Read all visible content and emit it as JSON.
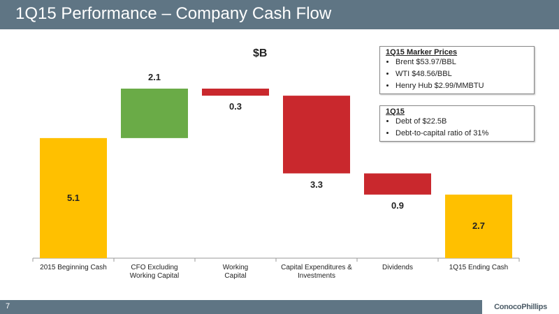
{
  "header": {
    "title": "1Q15 Performance – Company Cash Flow"
  },
  "chart_data": {
    "type": "waterfall",
    "unit_label": "$B",
    "categories": [
      "2015 Beginning Cash",
      "CFO Excluding\nWorking Capital",
      "Working\nCapital",
      "Capital Expenditures &\nInvestments",
      "Dividends",
      "1Q15 Ending Cash"
    ],
    "values": [
      5.1,
      2.1,
      0.3,
      3.3,
      0.9,
      2.7
    ],
    "measure": [
      "total",
      "increase",
      "decrease",
      "decrease",
      "decrease",
      "total"
    ],
    "colors": [
      "#ffc000",
      "#6aab47",
      "#c9282d",
      "#c9282d",
      "#c9282d",
      "#ffc000"
    ],
    "ylim": [
      0,
      8
    ]
  },
  "info_boxes": [
    {
      "title": "1Q15 Marker Prices",
      "items": [
        "Brent $53.97/BBL",
        "WTI $48.56/BBL",
        "Henry Hub $2.99/MMBTU"
      ]
    },
    {
      "title": "1Q15",
      "items": [
        "Debt of $22.5B",
        "Debt-to-capital ratio of 31%"
      ]
    }
  ],
  "footer": {
    "page_number": "7",
    "logo": "ConocoPhillips"
  }
}
